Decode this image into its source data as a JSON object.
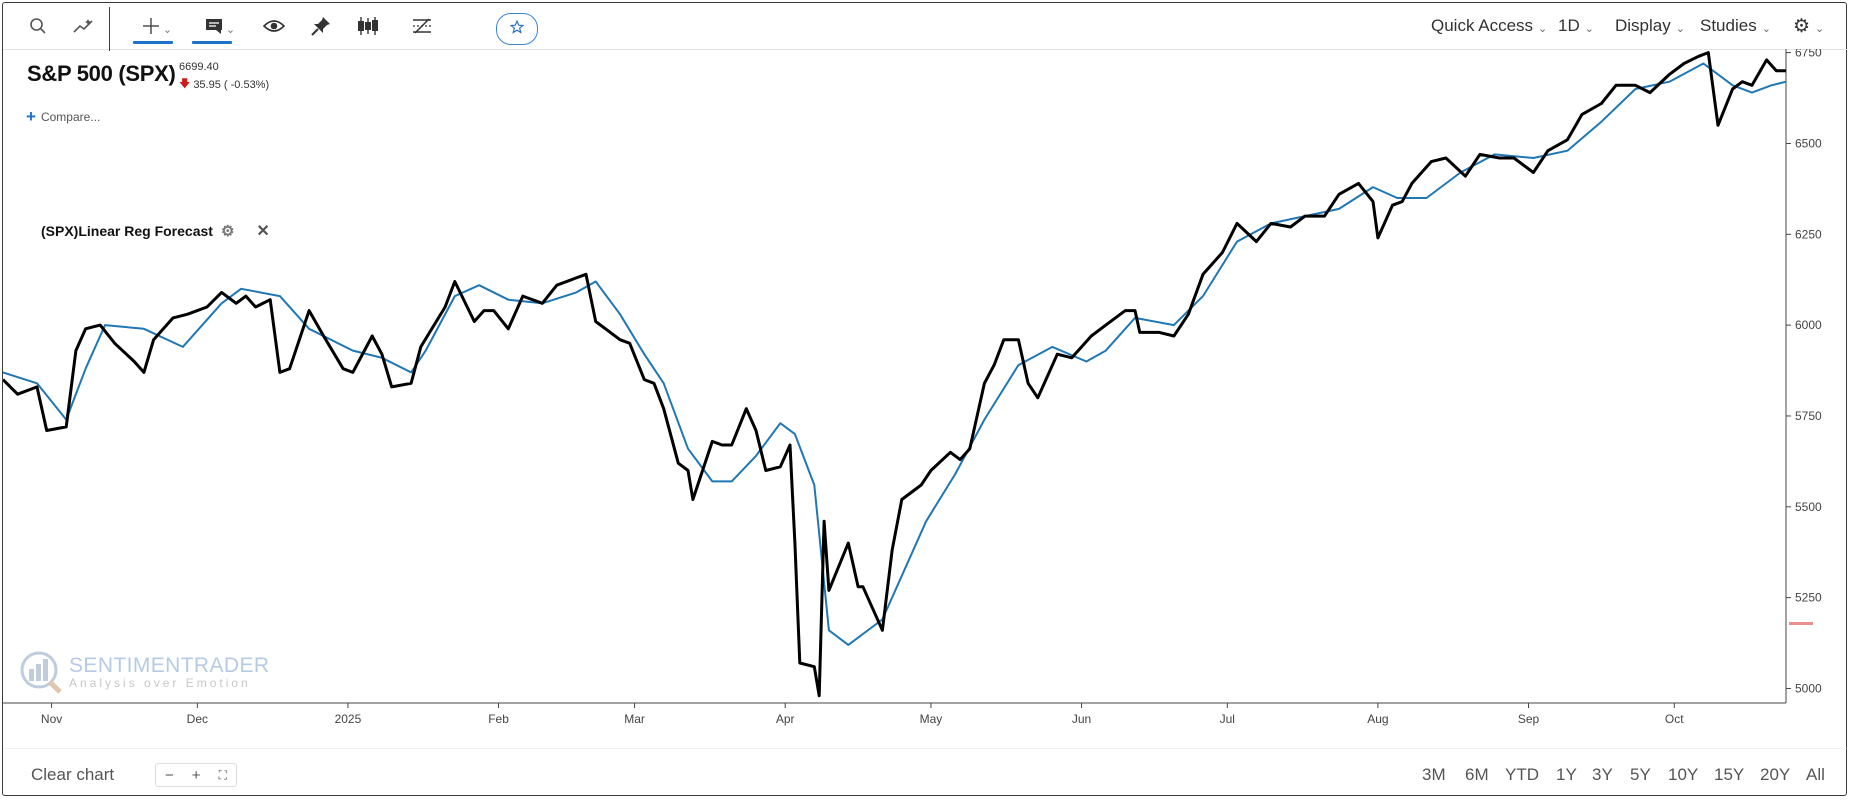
{
  "toolbar": {
    "icons": [
      "search-icon",
      "indicator-icon",
      "crosshair-icon",
      "annotation-icon",
      "eye-icon",
      "pin-icon",
      "candles-icon",
      "compare-lines-icon",
      "star-icon"
    ],
    "quick_access": "Quick Access",
    "interval": "1D",
    "display": "Display",
    "studies": "Studies",
    "settings_icon": "gear-icon"
  },
  "symbol": {
    "title": "S&P 500 (SPX)",
    "price": "6699.40",
    "change": "35.95 ( -0.53%)",
    "change_color": "#d01b1b"
  },
  "compare_label": "Compare...",
  "study": {
    "label": "(SPX)Linear Reg Forecast"
  },
  "watermark": {
    "brand": "SENTIMENTRADER",
    "tagline": "Analysis over Emotion"
  },
  "bottom": {
    "clear_chart": "Clear chart",
    "ranges": [
      "3M",
      "6M",
      "YTD",
      "1Y",
      "3Y",
      "5Y",
      "10Y",
      "15Y",
      "20Y",
      "All"
    ]
  },
  "colors": {
    "price_line": "#000000",
    "forecast_line": "#1f77b4",
    "accent": "#1d73c9"
  },
  "chart_data": {
    "type": "line",
    "ylim": [
      4960,
      6760
    ],
    "yticks": [
      5000,
      5250,
      5500,
      5750,
      6000,
      6250,
      6500,
      6750
    ],
    "xticks": [
      "Nov",
      "Dec",
      "2025",
      "Feb",
      "Mar",
      "Apr",
      "May",
      "Jun",
      "Jul",
      "Aug",
      "Sep",
      "Oct"
    ],
    "xtick_dates": [
      "2024-11-01",
      "2024-12-01",
      "2025-01-01",
      "2025-02-01",
      "2025-03-01",
      "2025-04-01",
      "2025-05-01",
      "2025-06-01",
      "2025-07-01",
      "2025-08-01",
      "2025-09-01",
      "2025-10-01"
    ],
    "x_start": "2024-10-22",
    "x_end": "2025-10-24",
    "series": [
      {
        "type": "line",
        "color": "#000000",
        "points": [
          [
            "2024-10-22",
            5850
          ],
          [
            "2024-10-25",
            5810
          ],
          [
            "2024-10-29",
            5830
          ],
          [
            "2024-10-31",
            5710
          ],
          [
            "2024-11-04",
            5720
          ],
          [
            "2024-11-06",
            5930
          ],
          [
            "2024-11-08",
            5990
          ],
          [
            "2024-11-11",
            6000
          ],
          [
            "2024-11-14",
            5950
          ],
          [
            "2024-11-18",
            5900
          ],
          [
            "2024-11-20",
            5870
          ],
          [
            "2024-11-22",
            5960
          ],
          [
            "2024-11-26",
            6020
          ],
          [
            "2024-11-29",
            6030
          ],
          [
            "2024-12-03",
            6050
          ],
          [
            "2024-12-06",
            6090
          ],
          [
            "2024-12-09",
            6060
          ],
          [
            "2024-12-11",
            6080
          ],
          [
            "2024-12-13",
            6050
          ],
          [
            "2024-12-16",
            6070
          ],
          [
            "2024-12-18",
            5870
          ],
          [
            "2024-12-20",
            5880
          ],
          [
            "2024-12-24",
            6040
          ],
          [
            "2024-12-27",
            5970
          ],
          [
            "2024-12-31",
            5880
          ],
          [
            "2025-01-02",
            5870
          ],
          [
            "2025-01-06",
            5970
          ],
          [
            "2025-01-08",
            5920
          ],
          [
            "2025-01-10",
            5830
          ],
          [
            "2025-01-14",
            5840
          ],
          [
            "2025-01-16",
            5940
          ],
          [
            "2025-01-21",
            6050
          ],
          [
            "2025-01-23",
            6120
          ],
          [
            "2025-01-27",
            6010
          ],
          [
            "2025-01-29",
            6040
          ],
          [
            "2025-01-31",
            6040
          ],
          [
            "2025-02-03",
            5990
          ],
          [
            "2025-02-06",
            6080
          ],
          [
            "2025-02-10",
            6060
          ],
          [
            "2025-02-13",
            6110
          ],
          [
            "2025-02-17",
            6130
          ],
          [
            "2025-02-19",
            6140
          ],
          [
            "2025-02-21",
            6010
          ],
          [
            "2025-02-24",
            5980
          ],
          [
            "2025-02-26",
            5960
          ],
          [
            "2025-02-28",
            5950
          ],
          [
            "2025-03-03",
            5850
          ],
          [
            "2025-03-05",
            5840
          ],
          [
            "2025-03-07",
            5770
          ],
          [
            "2025-03-10",
            5620
          ],
          [
            "2025-03-12",
            5600
          ],
          [
            "2025-03-13",
            5520
          ],
          [
            "2025-03-17",
            5680
          ],
          [
            "2025-03-19",
            5670
          ],
          [
            "2025-03-21",
            5670
          ],
          [
            "2025-03-24",
            5770
          ],
          [
            "2025-03-26",
            5710
          ],
          [
            "2025-03-28",
            5600
          ],
          [
            "2025-03-31",
            5610
          ],
          [
            "2025-04-02",
            5670
          ],
          [
            "2025-04-03",
            5400
          ],
          [
            "2025-04-04",
            5070
          ],
          [
            "2025-04-07",
            5060
          ],
          [
            "2025-04-08",
            4980
          ],
          [
            "2025-04-09",
            5460
          ],
          [
            "2025-04-10",
            5270
          ],
          [
            "2025-04-14",
            5400
          ],
          [
            "2025-04-16",
            5280
          ],
          [
            "2025-04-17",
            5280
          ],
          [
            "2025-04-21",
            5160
          ],
          [
            "2025-04-23",
            5380
          ],
          [
            "2025-04-25",
            5520
          ],
          [
            "2025-04-29",
            5560
          ],
          [
            "2025-05-01",
            5600
          ],
          [
            "2025-05-05",
            5650
          ],
          [
            "2025-05-07",
            5630
          ],
          [
            "2025-05-09",
            5660
          ],
          [
            "2025-05-12",
            5840
          ],
          [
            "2025-05-14",
            5890
          ],
          [
            "2025-05-16",
            5960
          ],
          [
            "2025-05-19",
            5960
          ],
          [
            "2025-05-21",
            5840
          ],
          [
            "2025-05-23",
            5800
          ],
          [
            "2025-05-27",
            5920
          ],
          [
            "2025-05-30",
            5910
          ],
          [
            "2025-06-03",
            5970
          ],
          [
            "2025-06-06",
            6000
          ],
          [
            "2025-06-10",
            6040
          ],
          [
            "2025-06-12",
            6040
          ],
          [
            "2025-06-13",
            5980
          ],
          [
            "2025-06-17",
            5980
          ],
          [
            "2025-06-20",
            5970
          ],
          [
            "2025-06-23",
            6030
          ],
          [
            "2025-06-26",
            6140
          ],
          [
            "2025-06-30",
            6200
          ],
          [
            "2025-07-03",
            6280
          ],
          [
            "2025-07-07",
            6230
          ],
          [
            "2025-07-10",
            6280
          ],
          [
            "2025-07-14",
            6270
          ],
          [
            "2025-07-17",
            6300
          ],
          [
            "2025-07-21",
            6300
          ],
          [
            "2025-07-24",
            6360
          ],
          [
            "2025-07-28",
            6390
          ],
          [
            "2025-07-31",
            6340
          ],
          [
            "2025-08-01",
            6240
          ],
          [
            "2025-08-04",
            6330
          ],
          [
            "2025-08-06",
            6340
          ],
          [
            "2025-08-08",
            6390
          ],
          [
            "2025-08-12",
            6450
          ],
          [
            "2025-08-15",
            6460
          ],
          [
            "2025-08-19",
            6410
          ],
          [
            "2025-08-22",
            6470
          ],
          [
            "2025-08-26",
            6460
          ],
          [
            "2025-08-29",
            6460
          ],
          [
            "2025-09-02",
            6420
          ],
          [
            "2025-09-05",
            6480
          ],
          [
            "2025-09-09",
            6510
          ],
          [
            "2025-09-12",
            6580
          ],
          [
            "2025-09-16",
            6610
          ],
          [
            "2025-09-19",
            6660
          ],
          [
            "2025-09-23",
            6660
          ],
          [
            "2025-09-26",
            6640
          ],
          [
            "2025-09-30",
            6690
          ],
          [
            "2025-10-03",
            6720
          ],
          [
            "2025-10-06",
            6740
          ],
          [
            "2025-10-08",
            6750
          ],
          [
            "2025-10-10",
            6550
          ],
          [
            "2025-10-13",
            6650
          ],
          [
            "2025-10-15",
            6670
          ],
          [
            "2025-10-17",
            6660
          ],
          [
            "2025-10-20",
            6730
          ],
          [
            "2025-10-22",
            6700
          ],
          [
            "2025-10-24",
            6700
          ]
        ]
      },
      {
        "type": "line",
        "color": "#1f77b4",
        "points": [
          [
            "2024-10-22",
            5870
          ],
          [
            "2024-10-29",
            5840
          ],
          [
            "2024-11-04",
            5740
          ],
          [
            "2024-11-08",
            5880
          ],
          [
            "2024-11-12",
            6000
          ],
          [
            "2024-11-20",
            5990
          ],
          [
            "2024-11-28",
            5940
          ],
          [
            "2024-12-06",
            6060
          ],
          [
            "2024-12-10",
            6100
          ],
          [
            "2024-12-18",
            6080
          ],
          [
            "2024-12-24",
            5990
          ],
          [
            "2025-01-02",
            5930
          ],
          [
            "2025-01-08",
            5910
          ],
          [
            "2025-01-14",
            5870
          ],
          [
            "2025-01-17",
            5930
          ],
          [
            "2025-01-23",
            6080
          ],
          [
            "2025-01-28",
            6110
          ],
          [
            "2025-02-03",
            6070
          ],
          [
            "2025-02-10",
            6060
          ],
          [
            "2025-02-17",
            6090
          ],
          [
            "2025-02-21",
            6120
          ],
          [
            "2025-02-26",
            6030
          ],
          [
            "2025-03-03",
            5920
          ],
          [
            "2025-03-07",
            5840
          ],
          [
            "2025-03-12",
            5660
          ],
          [
            "2025-03-17",
            5570
          ],
          [
            "2025-03-21",
            5570
          ],
          [
            "2025-03-26",
            5640
          ],
          [
            "2025-03-31",
            5730
          ],
          [
            "2025-04-03",
            5700
          ],
          [
            "2025-04-07",
            5560
          ],
          [
            "2025-04-10",
            5160
          ],
          [
            "2025-04-14",
            5120
          ],
          [
            "2025-04-17",
            5150
          ],
          [
            "2025-04-21",
            5190
          ],
          [
            "2025-04-25",
            5310
          ],
          [
            "2025-04-30",
            5460
          ],
          [
            "2025-05-06",
            5590
          ],
          [
            "2025-05-12",
            5740
          ],
          [
            "2025-05-19",
            5890
          ],
          [
            "2025-05-26",
            5940
          ],
          [
            "2025-06-02",
            5900
          ],
          [
            "2025-06-06",
            5930
          ],
          [
            "2025-06-12",
            6020
          ],
          [
            "2025-06-20",
            6000
          ],
          [
            "2025-06-26",
            6080
          ],
          [
            "2025-07-03",
            6230
          ],
          [
            "2025-07-10",
            6280
          ],
          [
            "2025-07-17",
            6300
          ],
          [
            "2025-07-24",
            6320
          ],
          [
            "2025-07-31",
            6380
          ],
          [
            "2025-08-05",
            6350
          ],
          [
            "2025-08-11",
            6350
          ],
          [
            "2025-08-18",
            6420
          ],
          [
            "2025-08-25",
            6470
          ],
          [
            "2025-09-02",
            6460
          ],
          [
            "2025-09-09",
            6480
          ],
          [
            "2025-09-16",
            6560
          ],
          [
            "2025-09-23",
            6650
          ],
          [
            "2025-09-30",
            6670
          ],
          [
            "2025-10-07",
            6720
          ],
          [
            "2025-10-13",
            6660
          ],
          [
            "2025-10-17",
            6640
          ],
          [
            "2025-10-21",
            6660
          ],
          [
            "2025-10-24",
            6670
          ]
        ]
      }
    ]
  }
}
